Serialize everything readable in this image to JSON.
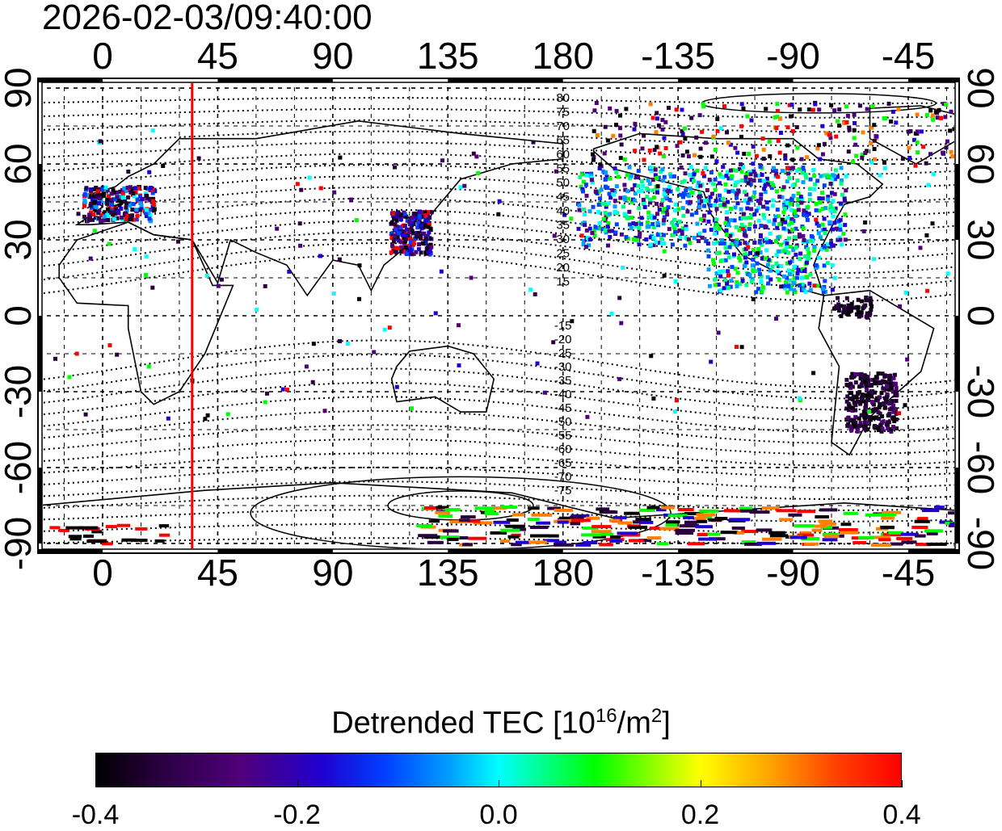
{
  "title": "2026-02-03/09:40:00",
  "map": {
    "lon_ticks": [
      "0",
      "45",
      "90",
      "135",
      "180",
      "-135",
      "-90",
      "-45"
    ],
    "lat_ticks": [
      "90",
      "60",
      "30",
      "0",
      "-30",
      "-60",
      "-90"
    ],
    "magnetic_latitude_labels_north": [
      "80",
      "75",
      "70",
      "65",
      "60",
      "55",
      "50",
      "45",
      "40",
      "35",
      "30",
      "25",
      "20",
      "15"
    ],
    "magnetic_latitude_labels_south": [
      "-15",
      "-20",
      "-25",
      "-30",
      "-35",
      "-40",
      "-45",
      "-50",
      "-55",
      "-60",
      "-65",
      "-70",
      "-75"
    ],
    "marker_longitude_deg": 35,
    "marker_color": "#ff0000"
  },
  "colorbar": {
    "title": "Detrended TEC  [10",
    "title_exp": "16",
    "title_unit": "/m",
    "title_unit_exp": "2",
    "title_end": "]",
    "ticks": [
      "-0.4",
      "-0.2",
      "0.0",
      "0.2",
      "0.4"
    ],
    "range": [
      -0.4,
      0.4
    ]
  }
}
